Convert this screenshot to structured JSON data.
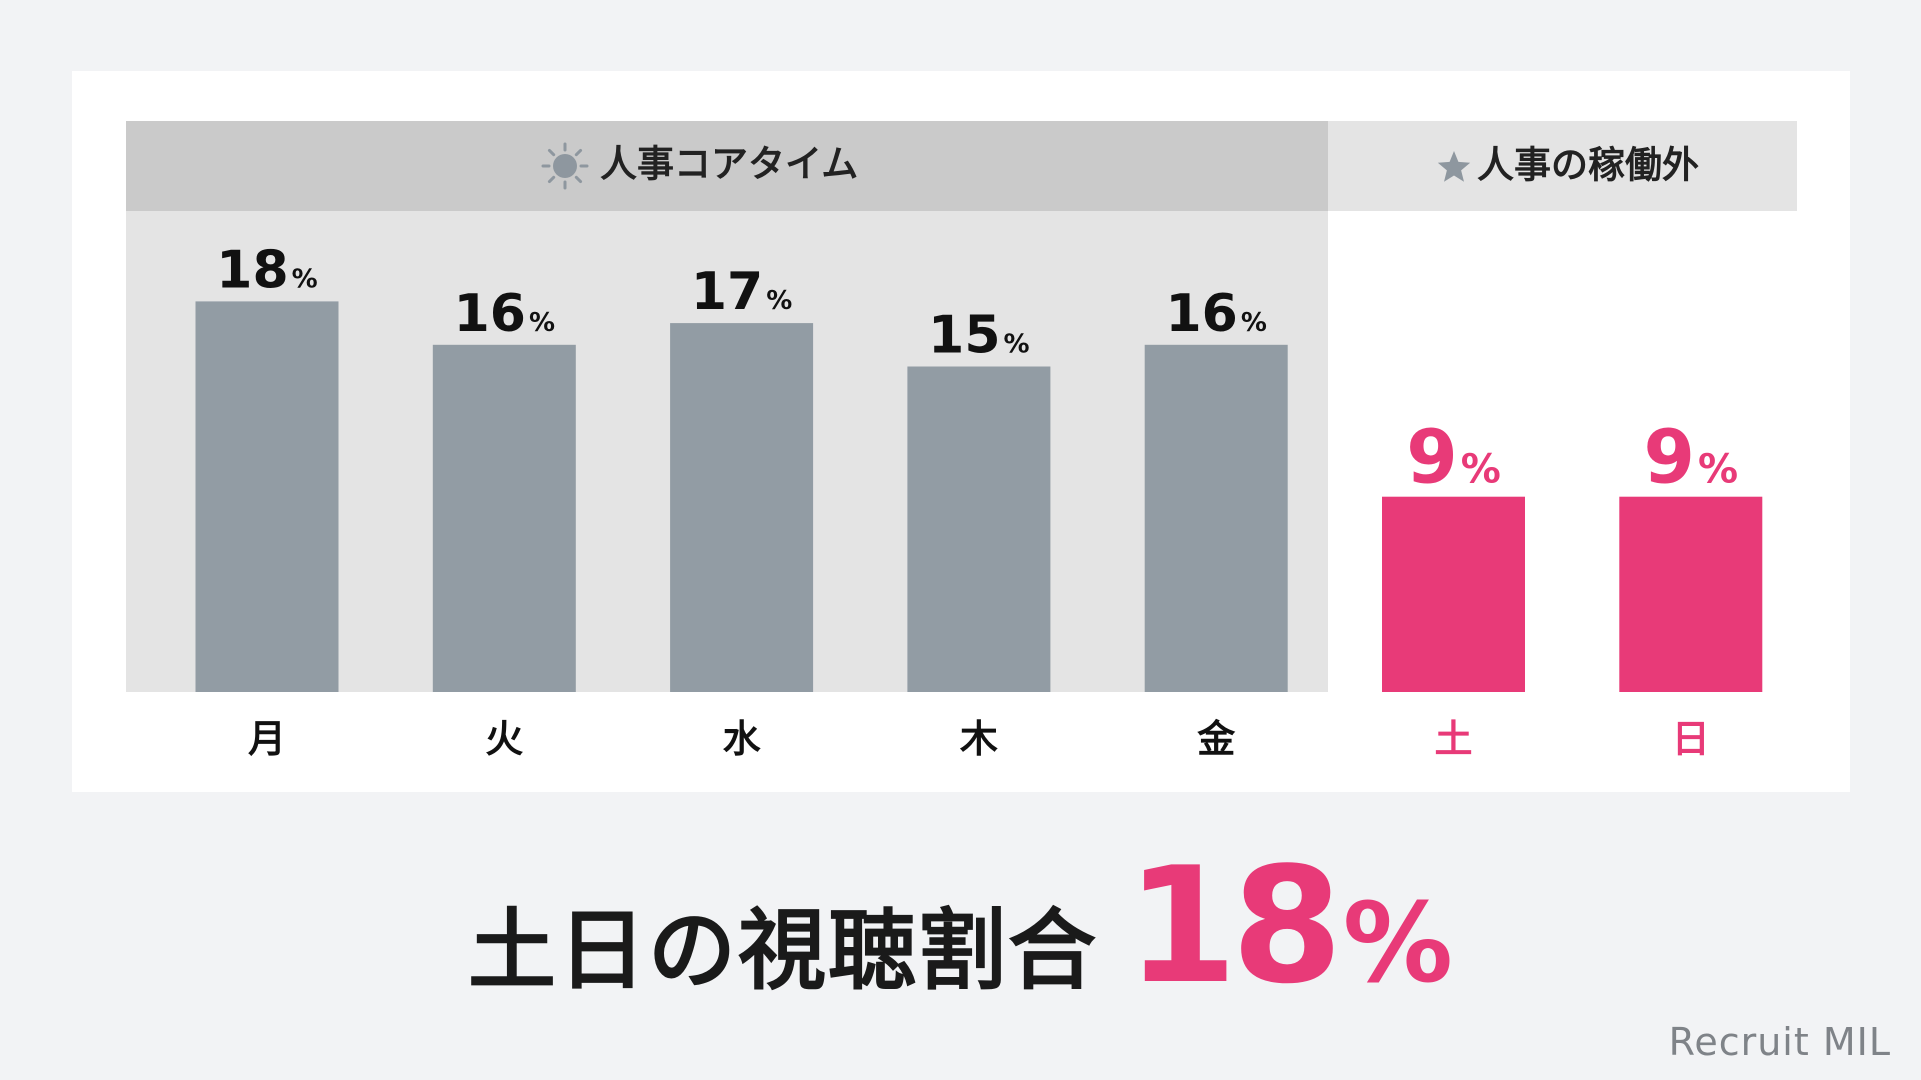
{
  "colors": {
    "page_bg": "#f2f3f5",
    "card_bg": "#ffffff",
    "weekday_panel": "#e4e4e4",
    "weekday_header": "#cacaca",
    "weekend_header": "#e4e4e4",
    "weekday_bar": "#929ca4",
    "weekend_bar": "#e83a78",
    "label_dark": "#111111",
    "icon_gray": "#8e979f",
    "logo_gray": "#7f8388"
  },
  "chart_data": {
    "type": "bar",
    "categories": [
      "月",
      "火",
      "水",
      "木",
      "金",
      "土",
      "日"
    ],
    "values": [
      18,
      16,
      17,
      15,
      16,
      9,
      9
    ],
    "unit": "%",
    "groups": [
      {
        "label": "人事コアタイム",
        "icon": "sun-icon",
        "categories": [
          "月",
          "火",
          "水",
          "木",
          "金"
        ]
      },
      {
        "label": "人事の稼働外",
        "icon": "star-icon",
        "categories": [
          "土",
          "日"
        ]
      }
    ],
    "highlight_categories": [
      "土",
      "日"
    ],
    "ylim": [
      0,
      18
    ],
    "grid": false,
    "legend": "none"
  },
  "headline": {
    "text": "土日の視聴割合",
    "value": "18",
    "unit": "%"
  },
  "logo": "Recruit MIL"
}
